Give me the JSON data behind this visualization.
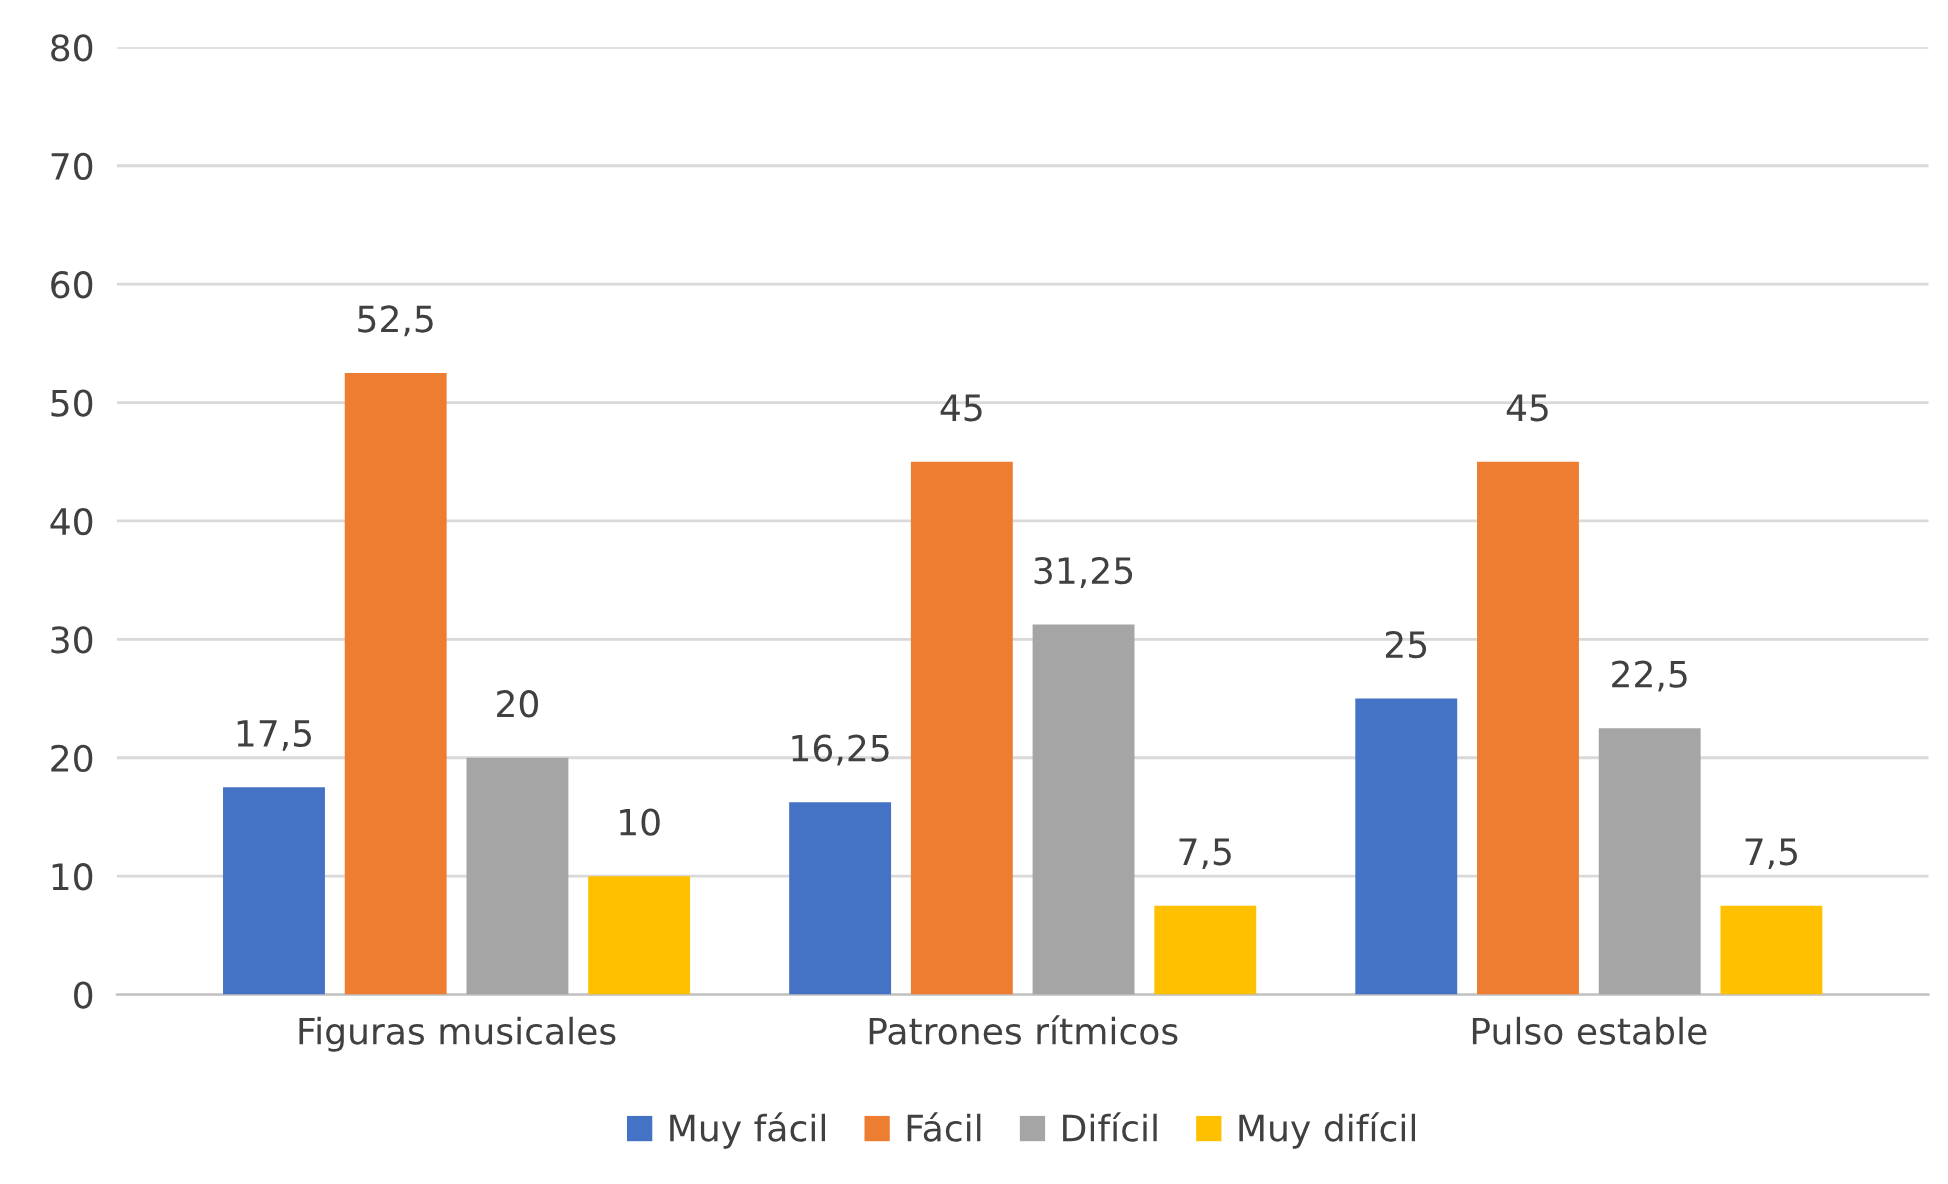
{
  "chart_data": {
    "type": "bar",
    "categories": [
      "Figuras musicales",
      "Patrones rítmicos",
      "Pulso estable"
    ],
    "series": [
      {
        "name": "Muy fácil",
        "color": "#4472c4",
        "values": [
          17.5,
          16.25,
          25
        ],
        "value_labels": [
          "17,5",
          "16,25",
          "25"
        ]
      },
      {
        "name": "Fácil",
        "color": "#ed7d31",
        "values": [
          52.5,
          45,
          45
        ],
        "value_labels": [
          "52,5",
          "45",
          "45"
        ]
      },
      {
        "name": "Difícil",
        "color": "#a5a5a5",
        "values": [
          20,
          31.25,
          22.5
        ],
        "value_labels": [
          "20",
          "31,25",
          "22,5"
        ]
      },
      {
        "name": "Muy difícil",
        "color": "#ffc000",
        "values": [
          10,
          7.5,
          7.5
        ],
        "value_labels": [
          "10",
          "7,5",
          "7,5"
        ]
      }
    ],
    "ylim": [
      0,
      80
    ],
    "yticks": [
      0,
      10,
      20,
      30,
      40,
      50,
      60,
      70,
      80
    ],
    "grid": "y",
    "legend": "bottom"
  }
}
